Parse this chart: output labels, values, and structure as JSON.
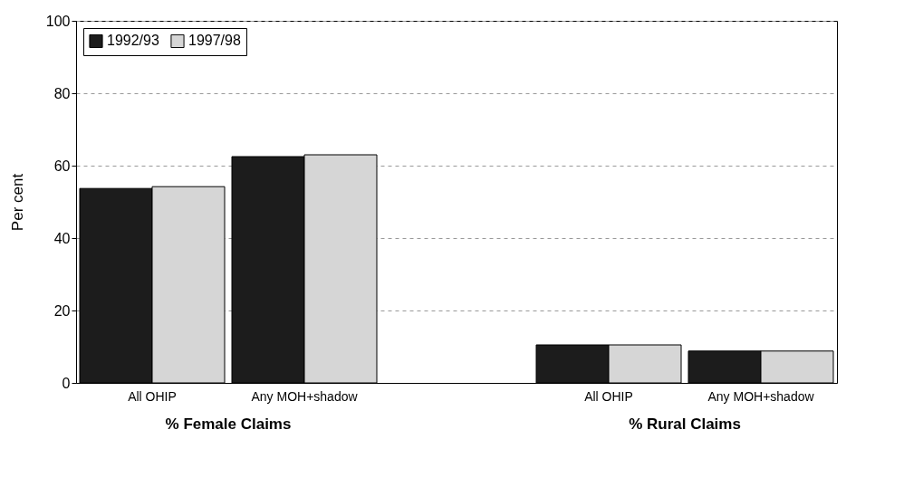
{
  "chart_data": {
    "type": "bar",
    "ylabel": "Per cent",
    "categories": [
      "All OHIP",
      "Any MOH+shadow",
      null,
      "All OHIP",
      "Any MOH+shadow"
    ],
    "series": [
      {
        "name": "1992/93",
        "color": "#1c1c1c",
        "values": [
          53.7,
          62.5,
          null,
          10.5,
          8.8
        ]
      },
      {
        "name": "1997/98",
        "color": "#d6d6d6",
        "values": [
          54.2,
          63,
          null,
          10.5,
          8.8
        ]
      }
    ],
    "ylim": [
      0,
      100
    ],
    "yticks": [
      0,
      20,
      40,
      60,
      80,
      100
    ],
    "grid": "y",
    "legend": "top left",
    "annotations": [
      "% Female Claims",
      "% Rural Claims"
    ]
  }
}
